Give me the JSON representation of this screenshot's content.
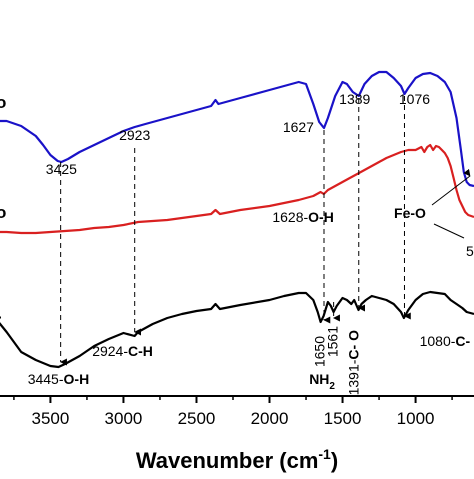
{
  "chart_data": {
    "type": "line",
    "xlabel_main": "Wavenumber (cm",
    "xlabel_sup": "-1",
    "xlabel_tail": ")",
    "x_axis_reversed": true,
    "xlim": [
      3900,
      600
    ],
    "x_ticks": [
      3500,
      3000,
      2500,
      2000,
      1500,
      1000
    ],
    "x_tick_labels": [
      "3500",
      "3000",
      "2500",
      "2000",
      "1500",
      "1000"
    ],
    "grid": false,
    "legend": "none",
    "series_labels_visible": [
      "o",
      "o",
      "-"
    ],
    "series": [
      {
        "color": "#1a12c8",
        "points": [
          [
            3900,
            121
          ],
          [
            3800,
            121
          ],
          [
            3700,
            126
          ],
          [
            3600,
            136
          ],
          [
            3550,
            145
          ],
          [
            3500,
            155
          ],
          [
            3450,
            161
          ],
          [
            3425,
            162
          ],
          [
            3380,
            159
          ],
          [
            3300,
            152
          ],
          [
            3200,
            145
          ],
          [
            3100,
            138
          ],
          [
            3000,
            131
          ],
          [
            2923,
            127
          ],
          [
            2850,
            124
          ],
          [
            2700,
            118
          ],
          [
            2500,
            110
          ],
          [
            2400,
            106
          ],
          [
            2370,
            100
          ],
          [
            2350,
            104
          ],
          [
            2200,
            98
          ],
          [
            2000,
            90
          ],
          [
            1900,
            86
          ],
          [
            1800,
            82
          ],
          [
            1750,
            84
          ],
          [
            1700,
            104
          ],
          [
            1660,
            122
          ],
          [
            1627,
            128
          ],
          [
            1600,
            118
          ],
          [
            1550,
            96
          ],
          [
            1500,
            82
          ],
          [
            1470,
            84
          ],
          [
            1430,
            92
          ],
          [
            1389,
            96
          ],
          [
            1350,
            84
          ],
          [
            1300,
            76
          ],
          [
            1250,
            72
          ],
          [
            1200,
            72
          ],
          [
            1150,
            78
          ],
          [
            1100,
            86
          ],
          [
            1076,
            94
          ],
          [
            1050,
            88
          ],
          [
            1000,
            78
          ],
          [
            950,
            74
          ],
          [
            900,
            73
          ],
          [
            850,
            76
          ],
          [
            800,
            82
          ],
          [
            760,
            92
          ],
          [
            720,
            118
          ],
          [
            690,
            150
          ],
          [
            670,
            172
          ],
          [
            650,
            182
          ],
          [
            630,
            185
          ],
          [
            600,
            186
          ]
        ]
      },
      {
        "color": "#d92020",
        "points": [
          [
            3900,
            232
          ],
          [
            3800,
            232
          ],
          [
            3700,
            233
          ],
          [
            3600,
            233
          ],
          [
            3500,
            232
          ],
          [
            3400,
            231
          ],
          [
            3300,
            230
          ],
          [
            3200,
            228
          ],
          [
            3100,
            227
          ],
          [
            3000,
            225
          ],
          [
            2900,
            222
          ],
          [
            2800,
            221
          ],
          [
            2700,
            220
          ],
          [
            2600,
            218
          ],
          [
            2500,
            216
          ],
          [
            2400,
            214
          ],
          [
            2370,
            210
          ],
          [
            2340,
            214
          ],
          [
            2200,
            210
          ],
          [
            2000,
            206
          ],
          [
            1900,
            203
          ],
          [
            1800,
            200
          ],
          [
            1700,
            196
          ],
          [
            1650,
            192
          ],
          [
            1628,
            194
          ],
          [
            1600,
            190
          ],
          [
            1550,
            186
          ],
          [
            1500,
            182
          ],
          [
            1450,
            178
          ],
          [
            1400,
            174
          ],
          [
            1350,
            170
          ],
          [
            1300,
            166
          ],
          [
            1250,
            162
          ],
          [
            1200,
            158
          ],
          [
            1150,
            155
          ],
          [
            1100,
            152
          ],
          [
            1050,
            150
          ],
          [
            1000,
            150
          ],
          [
            960,
            147
          ],
          [
            940,
            152
          ],
          [
            920,
            147
          ],
          [
            900,
            145
          ],
          [
            880,
            150
          ],
          [
            860,
            146
          ],
          [
            840,
            147
          ],
          [
            820,
            150
          ],
          [
            800,
            153
          ],
          [
            780,
            158
          ],
          [
            760,
            166
          ],
          [
            740,
            178
          ],
          [
            720,
            190
          ],
          [
            700,
            200
          ],
          [
            680,
            206
          ],
          [
            660,
            212
          ],
          [
            640,
            215
          ],
          [
            620,
            216
          ],
          [
            600,
            217
          ]
        ]
      },
      {
        "color": "#000000",
        "points": [
          [
            3900,
            322
          ],
          [
            3850,
            323
          ],
          [
            3800,
            332
          ],
          [
            3750,
            342
          ],
          [
            3700,
            352
          ],
          [
            3600,
            360
          ],
          [
            3500,
            366
          ],
          [
            3445,
            367
          ],
          [
            3400,
            364
          ],
          [
            3300,
            356
          ],
          [
            3200,
            346
          ],
          [
            3100,
            339
          ],
          [
            3000,
            333
          ],
          [
            2924,
            336
          ],
          [
            2900,
            332
          ],
          [
            2800,
            324
          ],
          [
            2700,
            318
          ],
          [
            2600,
            314
          ],
          [
            2500,
            311
          ],
          [
            2400,
            309
          ],
          [
            2370,
            304
          ],
          [
            2340,
            309
          ],
          [
            2200,
            305
          ],
          [
            2000,
            300
          ],
          [
            1900,
            296
          ],
          [
            1800,
            293
          ],
          [
            1750,
            293
          ],
          [
            1700,
            300
          ],
          [
            1670,
            312
          ],
          [
            1650,
            322
          ],
          [
            1630,
            316
          ],
          [
            1600,
            302
          ],
          [
            1580,
            306
          ],
          [
            1561,
            312
          ],
          [
            1540,
            306
          ],
          [
            1500,
            298
          ],
          [
            1470,
            300
          ],
          [
            1440,
            304
          ],
          [
            1420,
            300
          ],
          [
            1391,
            310
          ],
          [
            1370,
            304
          ],
          [
            1340,
            300
          ],
          [
            1300,
            296
          ],
          [
            1250,
            298
          ],
          [
            1200,
            300
          ],
          [
            1150,
            304
          ],
          [
            1100,
            312
          ],
          [
            1080,
            318
          ],
          [
            1050,
            310
          ],
          [
            1000,
            300
          ],
          [
            950,
            294
          ],
          [
            900,
            292
          ],
          [
            850,
            293
          ],
          [
            800,
            294
          ],
          [
            760,
            300
          ],
          [
            720,
            304
          ],
          [
            700,
            306
          ],
          [
            680,
            308
          ],
          [
            650,
            312
          ],
          [
            600,
            314
          ]
        ]
      }
    ],
    "guides": [
      {
        "x": 3430,
        "y1": 162,
        "y2": 362,
        "arrow": true
      },
      {
        "x": 2923,
        "y1": 148,
        "y2": 332,
        "arrow": true
      },
      {
        "x": 1627,
        "y1": 130,
        "y2": 320,
        "arrow": true
      },
      {
        "x": 1389,
        "y1": 98,
        "y2": 308,
        "arrow": true
      },
      {
        "x": 1076,
        "y1": 96,
        "y2": 316,
        "arrow": true
      },
      {
        "x": 1561,
        "y1": 302,
        "y2": 318,
        "arrow": true
      }
    ],
    "annotations": [
      {
        "x": 3425,
        "y": 174,
        "parts": [
          {
            "t": "3425",
            "b": false
          }
        ],
        "rot": 0
      },
      {
        "x": 2923,
        "y": 140,
        "parts": [
          {
            "t": "2923",
            "b": false
          }
        ],
        "rot": 0
      },
      {
        "x": 1627,
        "y": 132,
        "parts": [
          {
            "t": "1627",
            "b": false
          }
        ],
        "rot": 0,
        "anchor": "end",
        "dx": -10
      },
      {
        "x": 1389,
        "y": 104,
        "parts": [
          {
            "t": "1389",
            "b": false
          }
        ],
        "rot": 0,
        "dx": -4
      },
      {
        "x": 1076,
        "y": 104,
        "parts": [
          {
            "t": "1076",
            "b": false
          }
        ],
        "rot": 0,
        "dx": 10
      },
      {
        "x": 1628,
        "y": 222,
        "parts": [
          {
            "t": "1628-",
            "b": false
          },
          {
            "t": "O-H",
            "b": true
          }
        ],
        "rot": 0,
        "anchor": "end",
        "dx": 10
      },
      {
        "x": 3445,
        "y": 384,
        "parts": [
          {
            "t": "3445-",
            "b": false
          },
          {
            "t": "O-H",
            "b": true
          }
        ],
        "rot": 0
      },
      {
        "x": 2924,
        "y": 356,
        "parts": [
          {
            "t": "2924-",
            "b": false
          },
          {
            "t": "C-H",
            "b": true
          }
        ],
        "rot": 0,
        "dx": -12
      },
      {
        "x": 1391,
        "y": 330,
        "parts": [
          {
            "t": "1391-",
            "b": false
          },
          {
            "t": "C- O",
            "b": true
          }
        ],
        "rot": -90
      },
      {
        "x": 1080,
        "y": 346,
        "parts": [
          {
            "t": "1080-",
            "b": false
          },
          {
            "t": "C- C",
            "b": true
          }
        ],
        "rot": 0,
        "dx": 48
      }
    ],
    "rotated_numbers": [
      {
        "x": 1650,
        "y": 336,
        "text": "1650"
      },
      {
        "x": 1561,
        "y": 326,
        "text": "1561"
      }
    ],
    "nh2": {
      "x": 1640,
      "y": 384,
      "main": "NH",
      "sub": "2"
    },
    "feo": {
      "text": "Fe-O",
      "x": 428,
      "y": 218
    },
    "feo_partial": {
      "text": "5",
      "x": 466,
      "y": 256
    }
  }
}
